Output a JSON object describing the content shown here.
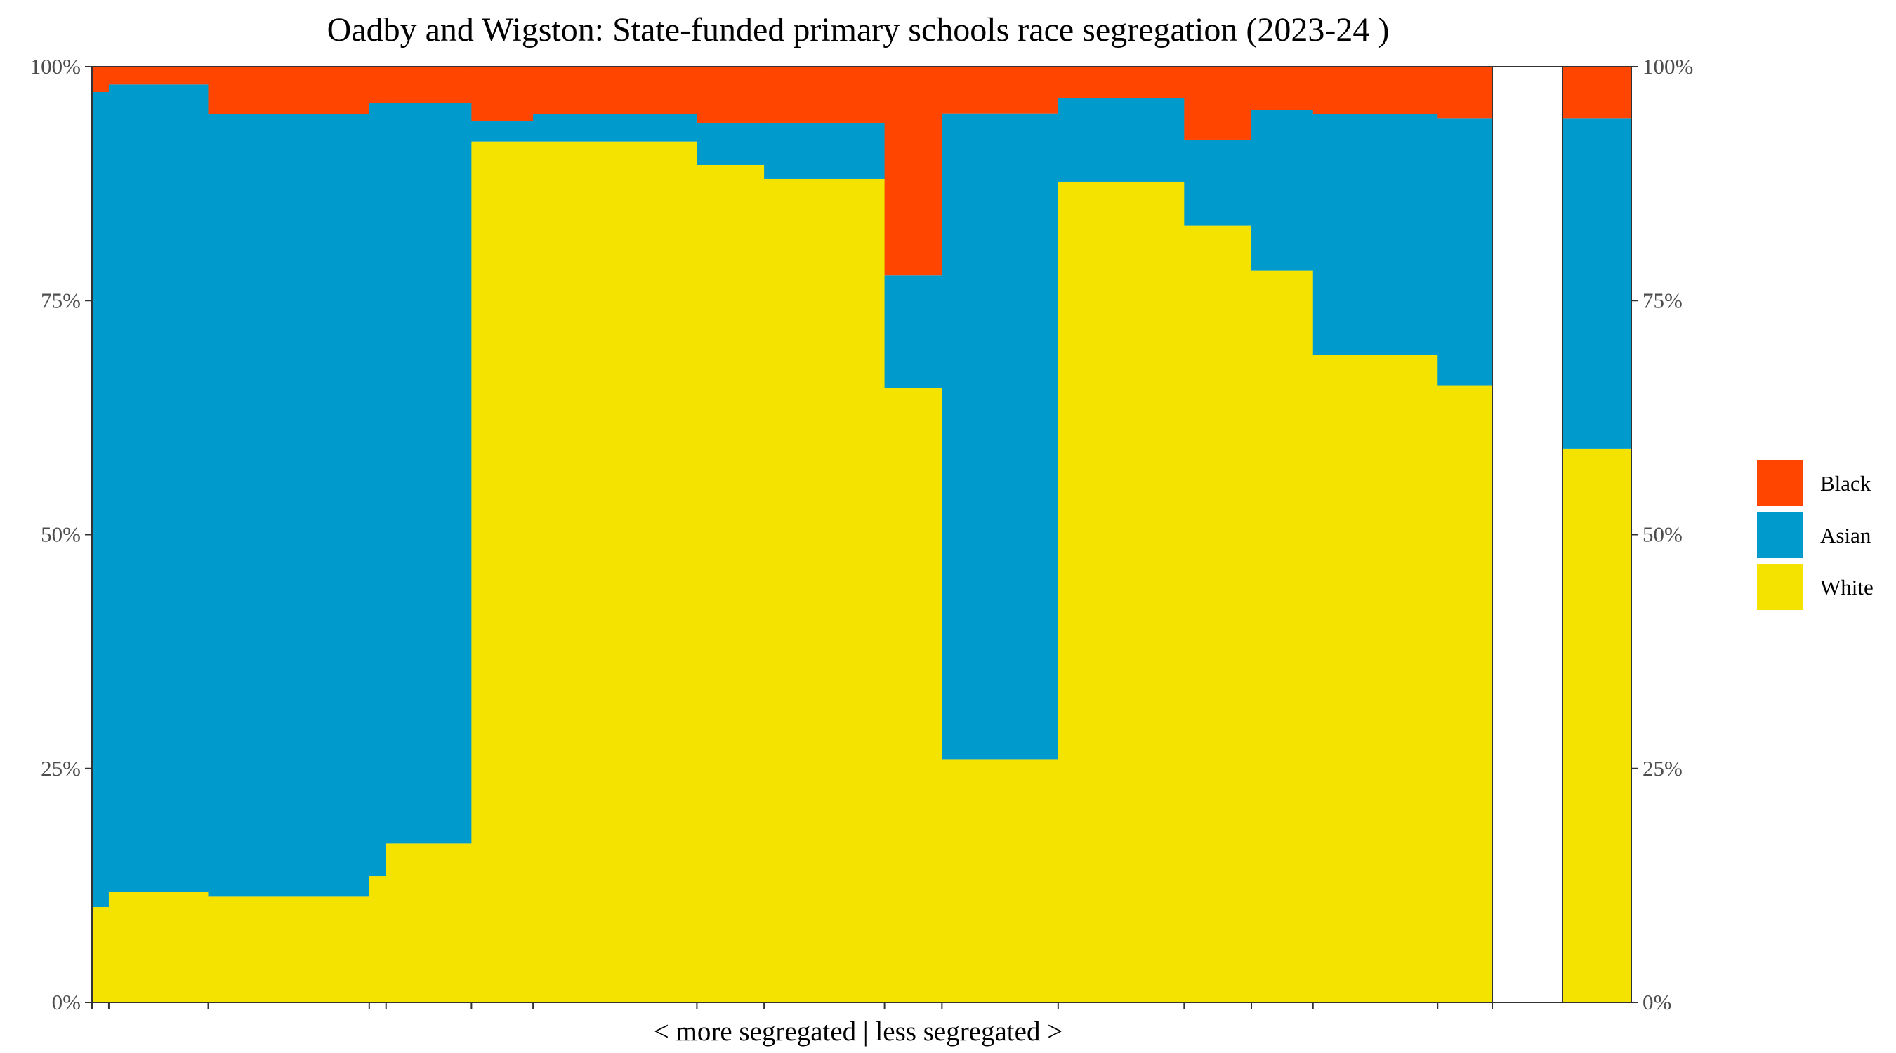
{
  "chart_data": {
    "type": "bar",
    "title": "Oadby and Wigston: State-funded primary schools race segregation (2023-24 )",
    "xlabel": "< more segregated | less segregated >",
    "ylabel": "",
    "ylim": [
      0,
      100
    ],
    "y_ticks": [
      "0%",
      "25%",
      "50%",
      "75%",
      "100%"
    ],
    "legend_position": "right",
    "series_colors": {
      "Black": "#ff4500",
      "Asian": "#009acd",
      "White": "#f4e300"
    },
    "legend": [
      "Black",
      "Asian",
      "White"
    ],
    "schools": [
      {
        "start": 0.0,
        "end": 0.012,
        "White": 10.2,
        "Asian": 87.1,
        "Black": 2.7
      },
      {
        "start": 0.012,
        "end": 0.083,
        "White": 11.8,
        "Asian": 86.3,
        "Black": 1.9
      },
      {
        "start": 0.083,
        "end": 0.198,
        "White": 11.3,
        "Asian": 83.6,
        "Black": 5.1
      },
      {
        "start": 0.198,
        "end": 0.21,
        "White": 13.5,
        "Asian": 82.6,
        "Black": 3.9
      },
      {
        "start": 0.21,
        "end": 0.271,
        "White": 17.0,
        "Asian": 79.1,
        "Black": 3.9
      },
      {
        "start": 0.271,
        "end": 0.315,
        "White": 92.0,
        "Asian": 2.2,
        "Black": 5.8
      },
      {
        "start": 0.315,
        "end": 0.432,
        "White": 92.0,
        "Asian": 2.9,
        "Black": 5.1
      },
      {
        "start": 0.432,
        "end": 0.48,
        "White": 89.5,
        "Asian": 4.5,
        "Black": 6.0
      },
      {
        "start": 0.48,
        "end": 0.566,
        "White": 88.0,
        "Asian": 6.0,
        "Black": 6.0
      },
      {
        "start": 0.566,
        "end": 0.607,
        "White": 65.7,
        "Asian": 12.0,
        "Black": 22.3
      },
      {
        "start": 0.607,
        "end": 0.69,
        "White": 26.0,
        "Asian": 69.0,
        "Black": 5.0
      },
      {
        "start": 0.69,
        "end": 0.78,
        "White": 87.7,
        "Asian": 9.0,
        "Black": 3.3
      },
      {
        "start": 0.78,
        "end": 0.828,
        "White": 83.0,
        "Asian": 9.2,
        "Black": 7.8
      },
      {
        "start": 0.828,
        "end": 0.872,
        "White": 78.2,
        "Asian": 17.2,
        "Black": 4.6
      },
      {
        "start": 0.872,
        "end": 0.961,
        "White": 69.2,
        "Asian": 25.7,
        "Black": 5.1
      },
      {
        "start": 0.961,
        "end": 1.0,
        "White": 65.9,
        "Asian": 28.6,
        "Black": 5.5
      }
    ],
    "overall": {
      "White": 59.2,
      "Asian": 35.3,
      "Black": 5.5
    }
  }
}
